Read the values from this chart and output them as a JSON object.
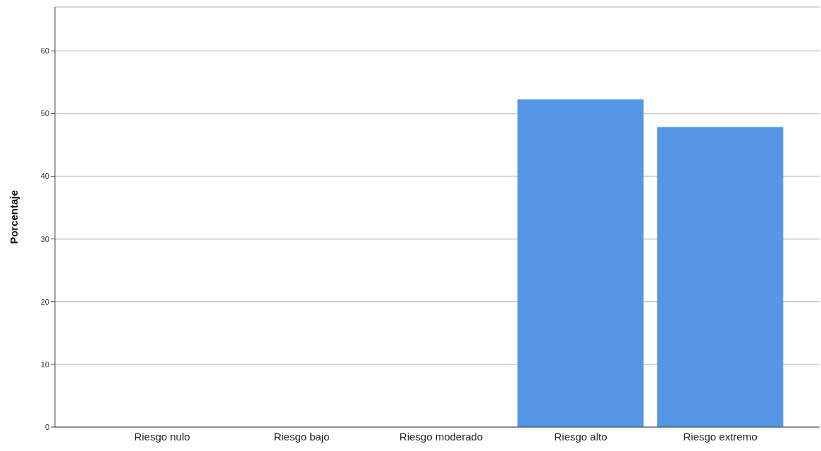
{
  "chart_data": {
    "type": "bar",
    "ylabel": "Porcentaje",
    "categories": [
      "Riesgo nulo",
      "Riesgo bajo",
      "Riesgo moderado",
      "Riesgo alto",
      "Riesgo extremo"
    ],
    "values": [
      0,
      0,
      0,
      52.2,
      47.8
    ],
    "color": "#5596e6",
    "ylim": [
      0,
      67
    ],
    "yticks": [
      0,
      10,
      20,
      30,
      40,
      50,
      60
    ],
    "grid": "y",
    "legend": false
  }
}
